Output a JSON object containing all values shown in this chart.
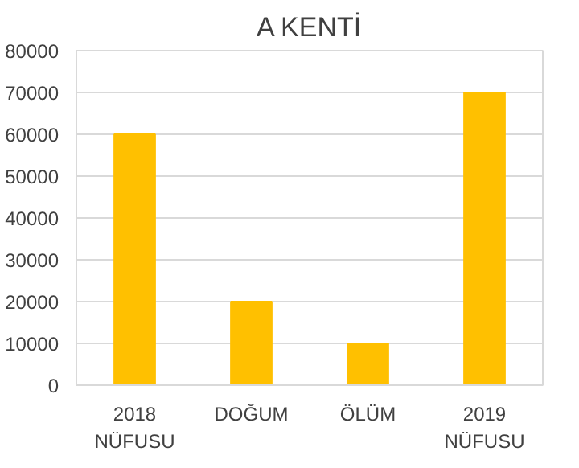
{
  "chart_data": {
    "type": "bar",
    "title": "A KENTİ",
    "categories": [
      "2018 NÜFUSU",
      "DOĞUM",
      "ÖLÜM",
      "2019 NÜFUSU"
    ],
    "values": [
      60000,
      20000,
      10000,
      70000
    ],
    "color": "#ffc000",
    "ylim": [
      0,
      80000
    ],
    "yticks": [
      0,
      10000,
      20000,
      30000,
      40000,
      50000,
      60000,
      70000,
      80000
    ],
    "grid": "y"
  }
}
